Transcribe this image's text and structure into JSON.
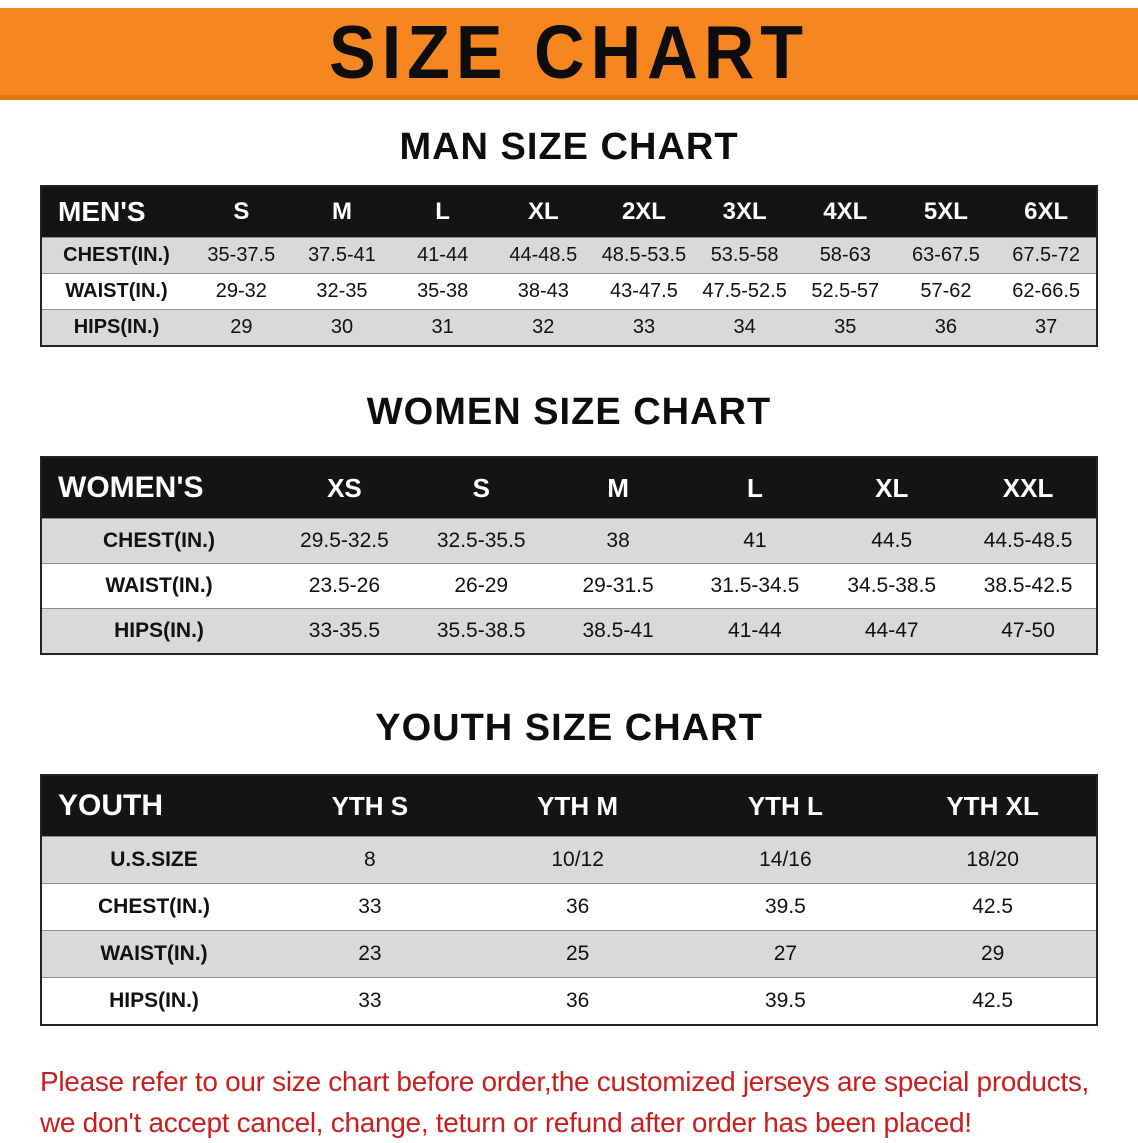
{
  "banner": {
    "title": "SIZE CHART"
  },
  "colors": {
    "banner_bg": "#F6861F",
    "banner_edge": "#DD7712",
    "header_bg": "#141414",
    "row_alt": "#D9D9D9",
    "footer_text": "#C81E1E"
  },
  "men": {
    "heading": "MAN SIZE CHART",
    "table": {
      "label": "MEN'S",
      "columns": [
        "S",
        "M",
        "L",
        "XL",
        "2XL",
        "3XL",
        "4XL",
        "5XL",
        "6XL"
      ],
      "rows": [
        {
          "label": "CHEST(IN.)",
          "values": [
            "35-37.5",
            "37.5-41",
            "41-44",
            "44-48.5",
            "48.5-53.5",
            "53.5-58",
            "58-63",
            "63-67.5",
            "67.5-72"
          ]
        },
        {
          "label": "WAIST(IN.)",
          "values": [
            "29-32",
            "32-35",
            "35-38",
            "38-43",
            "43-47.5",
            "47.5-52.5",
            "52.5-57",
            "57-62",
            "62-66.5"
          ]
        },
        {
          "label": "HIPS(IN.)",
          "values": [
            "29",
            "30",
            "31",
            "32",
            "33",
            "34",
            "35",
            "36",
            "37"
          ]
        }
      ]
    }
  },
  "women": {
    "heading": "WOMEN SIZE CHART",
    "table": {
      "label": "WOMEN'S",
      "columns": [
        "XS",
        "S",
        "M",
        "L",
        "XL",
        "XXL"
      ],
      "rows": [
        {
          "label": "CHEST(IN.)",
          "values": [
            "29.5-32.5",
            "32.5-35.5",
            "38",
            "41",
            "44.5",
            "44.5-48.5"
          ]
        },
        {
          "label": "WAIST(IN.)",
          "values": [
            "23.5-26",
            "26-29",
            "29-31.5",
            "31.5-34.5",
            "34.5-38.5",
            "38.5-42.5"
          ]
        },
        {
          "label": "HIPS(IN.)",
          "values": [
            "33-35.5",
            "35.5-38.5",
            "38.5-41",
            "41-44",
            "44-47",
            "47-50"
          ]
        }
      ]
    }
  },
  "youth": {
    "heading": "YOUTH SIZE CHART",
    "table": {
      "label": "YOUTH",
      "columns": [
        "YTH S",
        "YTH M",
        "YTH L",
        "YTH XL"
      ],
      "rows": [
        {
          "label": "U.S.SIZE",
          "values": [
            "8",
            "10/12",
            "14/16",
            "18/20"
          ]
        },
        {
          "label": "CHEST(IN.)",
          "values": [
            "33",
            "36",
            "39.5",
            "42.5"
          ]
        },
        {
          "label": "WAIST(IN.)",
          "values": [
            "23",
            "25",
            "27",
            "29"
          ]
        },
        {
          "label": "HIPS(IN.)",
          "values": [
            "33",
            "36",
            "39.5",
            "42.5"
          ]
        }
      ]
    }
  },
  "footer": {
    "line1": "Please refer to our size chart before order,the customized jerseys are special products,",
    "line2": "we don't accept cancel, change, teturn or refund after order has been placed!"
  }
}
